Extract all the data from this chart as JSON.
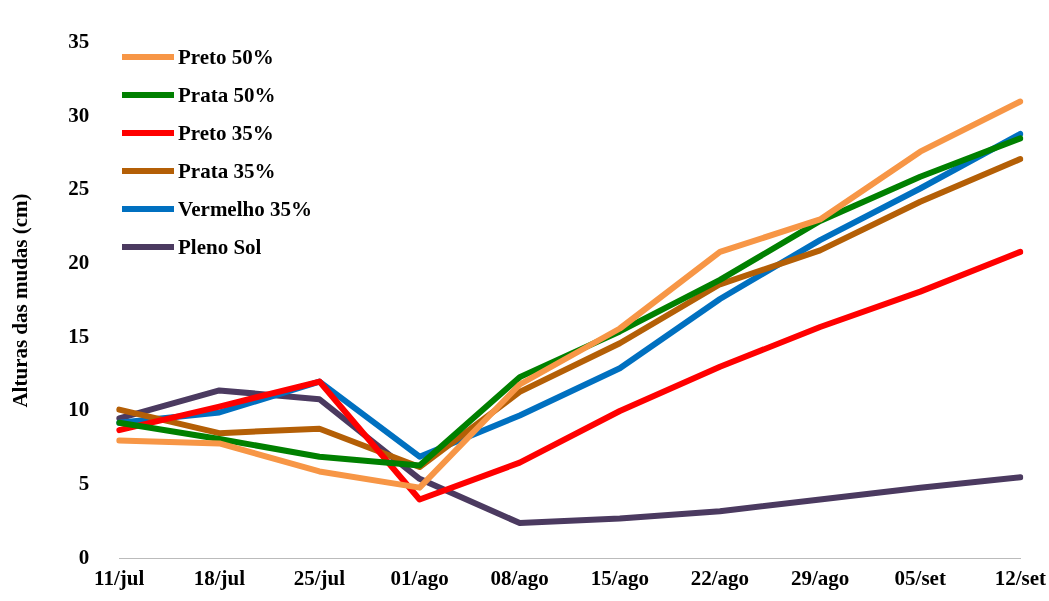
{
  "chart_data": {
    "type": "line",
    "ylabel": "Alturas das mudas (cm)",
    "categories": [
      "11/jul",
      "18/jul",
      "25/jul",
      "01/ago",
      "08/ago",
      "15/ago",
      "22/ago",
      "29/ago",
      "05/set",
      "12/set"
    ],
    "ylim": [
      0,
      35
    ],
    "yticks": [
      0,
      5,
      10,
      15,
      20,
      25,
      30,
      35
    ],
    "grid": false,
    "legend": "top left",
    "marker": "none",
    "line_style": "solid",
    "series": [
      {
        "name": "Preto 50%",
        "color": "#f79646",
        "values": [
          8.0,
          7.8,
          5.9,
          4.8,
          11.8,
          15.6,
          20.8,
          23.0,
          27.6,
          31.0
        ]
      },
      {
        "name": "Prata 50%",
        "color": "#008000",
        "values": [
          9.2,
          8.1,
          6.9,
          6.3,
          12.3,
          15.4,
          18.9,
          22.9,
          25.9,
          28.5
        ]
      },
      {
        "name": "Preto 35%",
        "color": "#ff0000",
        "values": [
          8.7,
          10.3,
          12.0,
          4.0,
          6.5,
          10.0,
          13.0,
          15.7,
          18.1,
          20.8
        ]
      },
      {
        "name": "Prata 35%",
        "color": "#b45f06",
        "values": [
          10.1,
          8.5,
          8.8,
          6.2,
          11.3,
          14.6,
          18.6,
          20.9,
          24.2,
          27.1
        ]
      },
      {
        "name": "Vermelho 35%",
        "color": "#0070c0",
        "values": [
          9.2,
          9.9,
          12.0,
          6.9,
          9.7,
          12.9,
          17.6,
          21.6,
          25.1,
          28.8
        ]
      },
      {
        "name": "Pleno Sol",
        "color": "#4b3a60",
        "values": [
          9.5,
          11.4,
          10.8,
          5.4,
          2.4,
          2.7,
          3.2,
          4.0,
          4.8,
          5.5
        ]
      }
    ]
  }
}
